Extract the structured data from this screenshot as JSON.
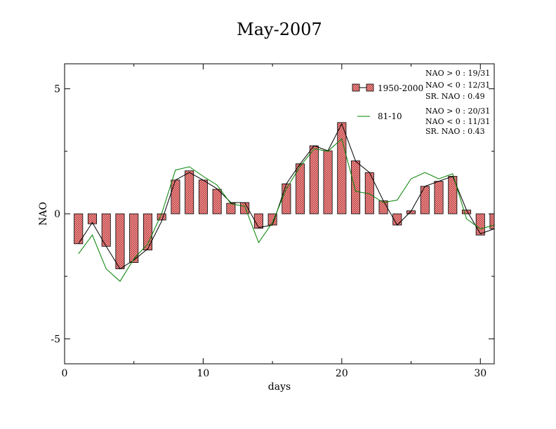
{
  "chart_data": {
    "type": "bar",
    "title": "May-2007",
    "xlabel": "days",
    "ylabel": "NAO",
    "xlim": [
      0,
      31
    ],
    "ylim": [
      -6,
      6
    ],
    "xticks": [
      0,
      10,
      20,
      30
    ],
    "yticks": [
      -5,
      0,
      5
    ],
    "x": [
      1,
      2,
      3,
      4,
      5,
      6,
      7,
      8,
      9,
      10,
      11,
      12,
      13,
      14,
      15,
      16,
      17,
      18,
      19,
      20,
      21,
      22,
      23,
      24,
      25,
      26,
      27,
      28,
      29,
      30,
      31
    ],
    "series": [
      {
        "name": "1950-2000",
        "kind": "bar",
        "color": "#ff9a9a",
        "values": [
          -1.2,
          -0.4,
          -1.3,
          -2.2,
          -1.95,
          -1.45,
          -0.25,
          1.35,
          1.72,
          1.35,
          0.98,
          0.42,
          0.45,
          -0.58,
          -0.45,
          1.2,
          2.0,
          2.72,
          2.52,
          3.65,
          2.12,
          1.65,
          0.52,
          -0.45,
          0.12,
          1.1,
          1.3,
          1.5,
          0.15,
          -0.85,
          -0.6
        ]
      },
      {
        "name": "",
        "kind": "line",
        "color": "#000000",
        "values": [
          -1.2,
          -0.35,
          -1.3,
          -2.2,
          -1.85,
          -1.4,
          -0.3,
          1.35,
          1.65,
          1.35,
          1.0,
          0.45,
          0.45,
          -0.55,
          -0.45,
          1.2,
          2.0,
          2.72,
          2.52,
          3.6,
          2.1,
          1.65,
          0.52,
          -0.45,
          0.1,
          1.1,
          1.3,
          1.5,
          0.15,
          -0.8,
          -0.6
        ]
      },
      {
        "name": "81-10",
        "kind": "line",
        "color": "#008000",
        "values": [
          -1.6,
          -0.85,
          -2.2,
          -2.7,
          -1.8,
          -1.2,
          0.0,
          1.75,
          1.88,
          1.5,
          1.15,
          0.4,
          0.3,
          -1.15,
          -0.35,
          1.0,
          1.9,
          2.6,
          2.5,
          3.0,
          0.9,
          0.8,
          0.45,
          0.55,
          1.4,
          1.65,
          1.4,
          1.6,
          -0.2,
          -0.6,
          -0.45
        ]
      }
    ],
    "legend": "top-right",
    "stats": [
      [
        "NAO > 0 : 19/31",
        "NAO < 0 : 12/31",
        "SR. NAO :  0.49"
      ],
      [
        "NAO > 0 : 20/31",
        "NAO < 0 : 11/31",
        "SR. NAO :  0.43"
      ]
    ]
  }
}
